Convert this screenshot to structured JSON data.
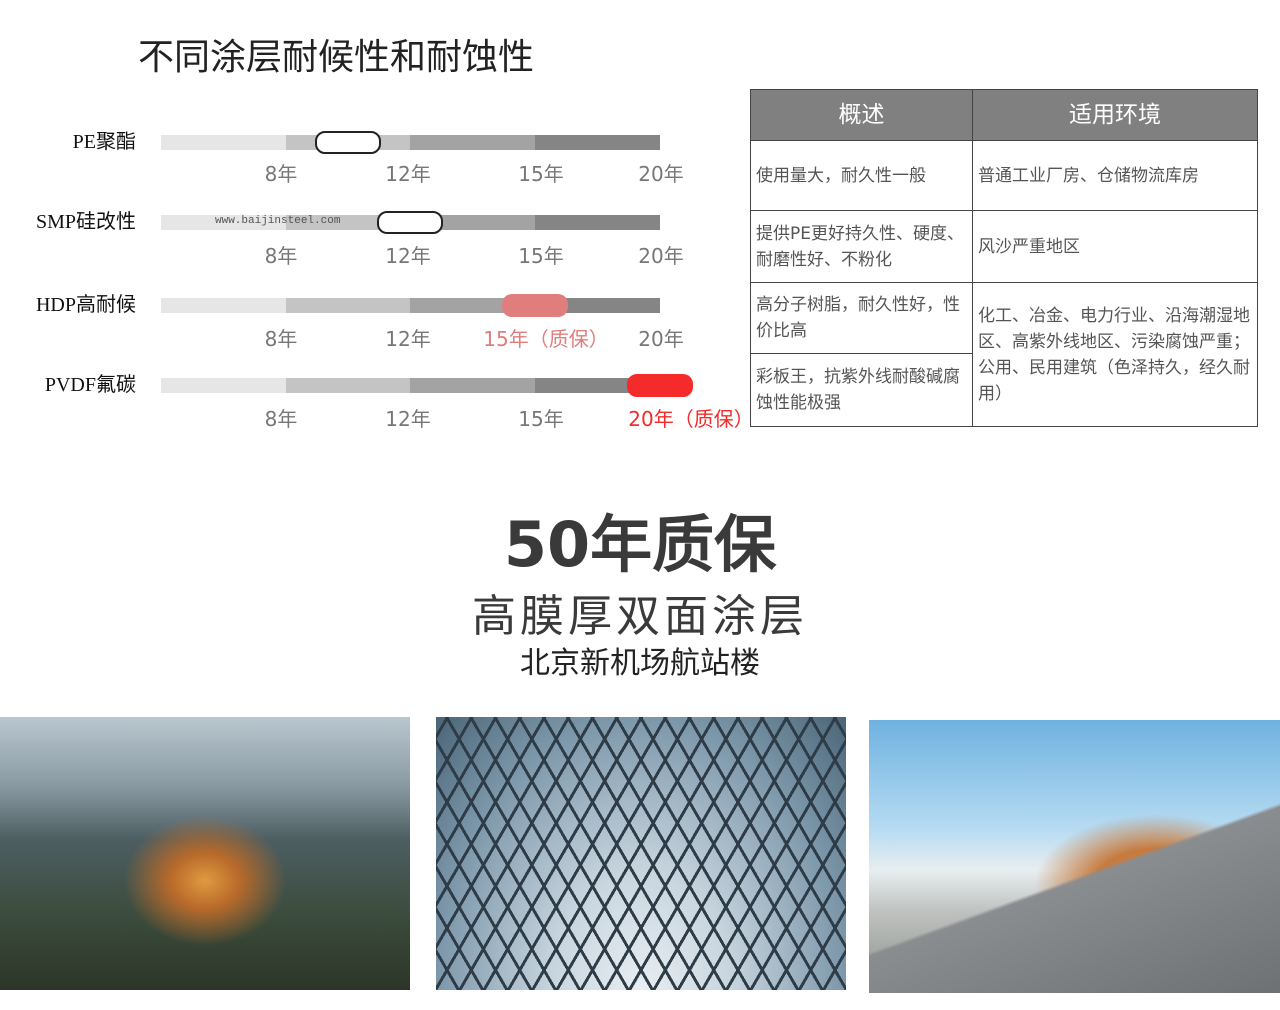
{
  "title": "不同涂层耐候性和耐蚀性",
  "watermark": "www.baijinsteel.com",
  "coatings": [
    {
      "name": "PE聚酯",
      "durability_years": 10,
      "marker_color": "#ffffff",
      "labels": [
        "8年",
        "12年",
        "15年",
        "20年"
      ],
      "highlight_label": null
    },
    {
      "name": "SMP硅改性",
      "durability_years": 12,
      "marker_color": "#ffffff",
      "labels": [
        "8年",
        "12年",
        "15年",
        "20年"
      ],
      "highlight_label": null
    },
    {
      "name": "HDP高耐候",
      "durability_years": 15,
      "marker_color": "#e07d7d",
      "labels": [
        "8年",
        "12年",
        "15年（质保）",
        "20年"
      ],
      "highlight_label": "15年（质保）"
    },
    {
      "name": "PVDF氟碳",
      "durability_years": 20,
      "marker_color": "#f52a2a",
      "labels": [
        "8年",
        "12年",
        "15年",
        "20年（质保）"
      ],
      "highlight_label": "20年（质保）"
    }
  ],
  "table": {
    "headers": [
      "概述",
      "适用环境"
    ],
    "rows": [
      {
        "desc": "使用量大，耐久性一般",
        "env": "普通工业厂房、仓储物流库房"
      },
      {
        "desc": "提供PE更好持久性、硬度、耐磨性好、不粉化",
        "env": "风沙严重地区"
      },
      {
        "desc": "高分子树脂，耐久性好，性价比高",
        "env": "化工、冶金、电力行业、沿海潮湿地区、高紫外线地区、污染腐蚀严重；公用、民用建筑（色泽持久，经久耐用）"
      },
      {
        "desc": "彩板王，抗紫外线耐酸碱腐蚀性能极强"
      }
    ]
  },
  "headline": "50年质保",
  "subheadline": "高膜厚双面涂层",
  "project": "北京新机场航站楼"
}
